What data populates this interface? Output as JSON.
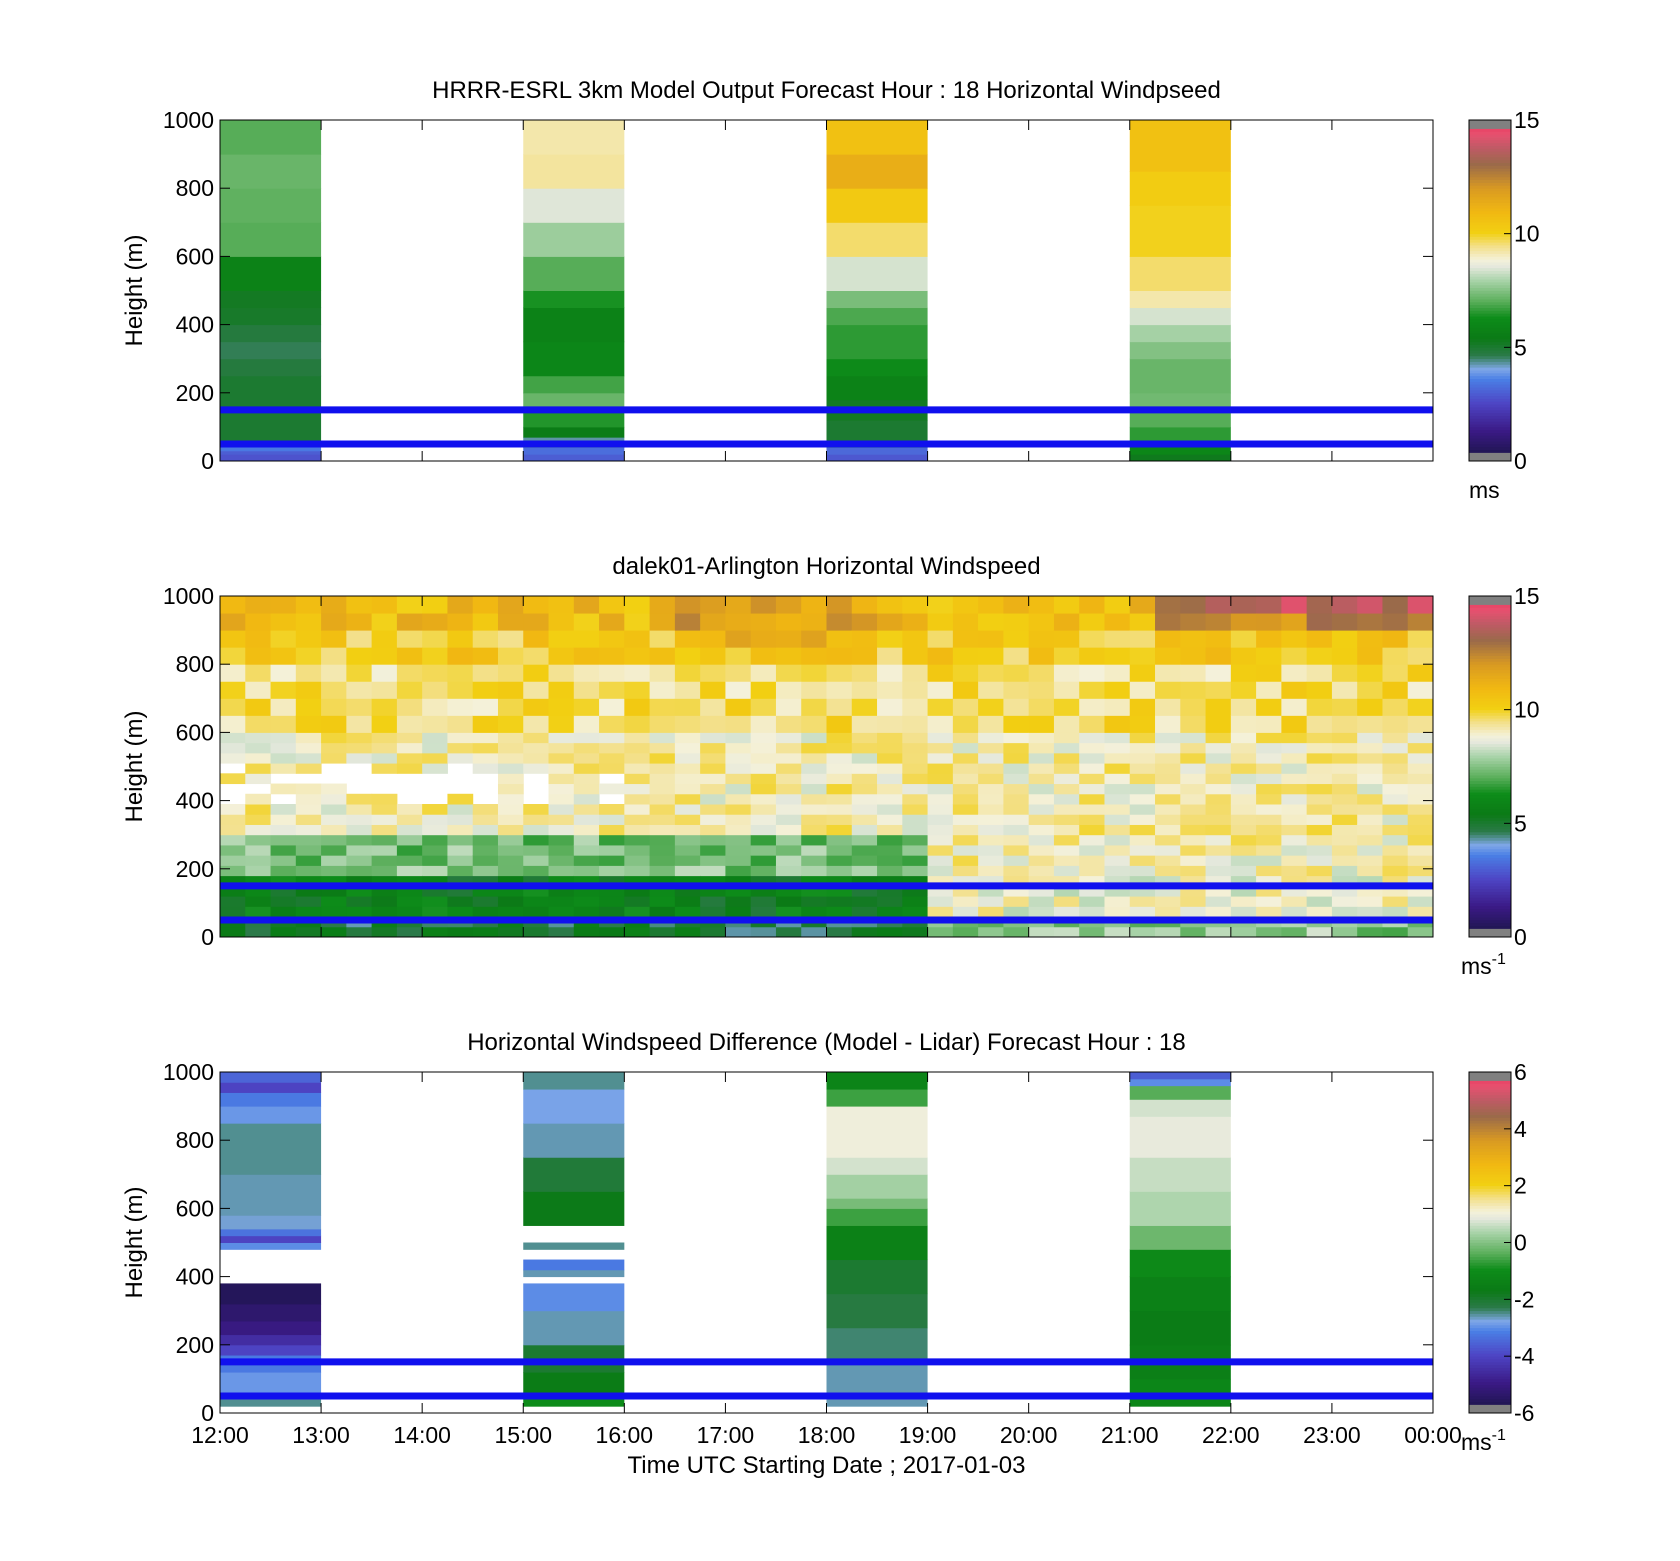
{
  "chart_data": {
    "type": "heatmap",
    "colormap": [
      [
        0.0,
        "#171440"
      ],
      [
        0.09,
        "#3b1a86"
      ],
      [
        0.17,
        "#4e45c5"
      ],
      [
        0.24,
        "#4a7fe5"
      ],
      [
        0.27,
        "#7fa7e8"
      ],
      [
        0.31,
        "#2b7a48"
      ],
      [
        0.36,
        "#0b7a16"
      ],
      [
        0.42,
        "#0d8c19"
      ],
      [
        0.47,
        "#5caf5c"
      ],
      [
        0.53,
        "#a9d3a9"
      ],
      [
        0.57,
        "#e4e8dc"
      ],
      [
        0.59,
        "#f4f1da"
      ],
      [
        0.63,
        "#f3e08a"
      ],
      [
        0.67,
        "#f2d012"
      ],
      [
        0.73,
        "#f1b812"
      ],
      [
        0.8,
        "#d99a22"
      ],
      [
        0.87,
        "#9a6a4a"
      ],
      [
        0.92,
        "#c05a66"
      ],
      [
        0.96,
        "#e8506f"
      ],
      [
        1.0,
        "#e83055"
      ]
    ],
    "panels": [
      {
        "title": "HRRR-ESRL 3km Model Output   Forecast Hour : 18 Horizontal Windpseed",
        "ylabel": "Height (m)",
        "ylim": [
          0,
          1000
        ],
        "yticks": [
          "0",
          "200",
          "400",
          "600",
          "800",
          "1000"
        ],
        "colorbar": {
          "ticks": [
            "0",
            "5",
            "10",
            "15"
          ],
          "min": 0,
          "max": 15,
          "unit": "ms",
          "unit_sup": ""
        },
        "reference_lines": [
          150,
          50
        ],
        "columns": [
          {
            "x_start": 0,
            "x_end": 1,
            "levels": [
              [
                0,
                20,
                2.8
              ],
              [
                20,
                30,
                3.0
              ],
              [
                30,
                50,
                3.5
              ],
              [
                50,
                150,
                5.0
              ],
              [
                150,
                250,
                5.0
              ],
              [
                250,
                300,
                4.8
              ],
              [
                300,
                350,
                4.6
              ],
              [
                350,
                400,
                4.8
              ],
              [
                400,
                450,
                5.1
              ],
              [
                450,
                500,
                5.2
              ],
              [
                500,
                600,
                5.8
              ],
              [
                600,
                700,
                7.0
              ],
              [
                700,
                800,
                7.1
              ],
              [
                800,
                900,
                7.2
              ],
              [
                900,
                1000,
                7.0
              ]
            ]
          },
          {
            "x_start": 3,
            "x_end": 4,
            "levels": [
              [
                0,
                20,
                3.0
              ],
              [
                20,
                40,
                3.3
              ],
              [
                40,
                70,
                4.3
              ],
              [
                70,
                100,
                5.5
              ],
              [
                100,
                150,
                6.5
              ],
              [
                150,
                200,
                7.2
              ],
              [
                200,
                250,
                6.8
              ],
              [
                250,
                350,
                6.0
              ],
              [
                350,
                450,
                5.8
              ],
              [
                450,
                500,
                6.4
              ],
              [
                500,
                600,
                7.0
              ],
              [
                600,
                700,
                7.8
              ],
              [
                700,
                800,
                8.5
              ],
              [
                800,
                900,
                9.3
              ],
              [
                900,
                1000,
                9.2
              ]
            ]
          },
          {
            "x_start": 6,
            "x_end": 7,
            "levels": [
              [
                0,
                20,
                2.9
              ],
              [
                20,
                40,
                3.2
              ],
              [
                40,
                60,
                4.4
              ],
              [
                60,
                120,
                5.0
              ],
              [
                120,
                180,
                5.2
              ],
              [
                180,
                250,
                5.8
              ],
              [
                250,
                300,
                6.2
              ],
              [
                300,
                400,
                6.6
              ],
              [
                400,
                450,
                6.9
              ],
              [
                450,
                500,
                7.4
              ],
              [
                500,
                600,
                8.4
              ],
              [
                600,
                700,
                9.6
              ],
              [
                700,
                800,
                10.3
              ],
              [
                800,
                900,
                11.3
              ],
              [
                900,
                1000,
                10.6
              ]
            ]
          },
          {
            "x_start": 9,
            "x_end": 10,
            "levels": [
              [
                0,
                20,
                5.3
              ],
              [
                20,
                50,
                6.0
              ],
              [
                50,
                100,
                6.6
              ],
              [
                100,
                150,
                7.0
              ],
              [
                150,
                200,
                7.3
              ],
              [
                200,
                300,
                7.2
              ],
              [
                300,
                350,
                7.5
              ],
              [
                350,
                400,
                7.9
              ],
              [
                400,
                450,
                8.4
              ],
              [
                450,
                500,
                9.2
              ],
              [
                500,
                600,
                9.6
              ],
              [
                600,
                750,
                10.0
              ],
              [
                750,
                850,
                10.2
              ],
              [
                850,
                1000,
                10.6
              ]
            ]
          }
        ]
      },
      {
        "title": "dalek01-Arlington  Horizontal Windspeed",
        "ylabel": "Height (m)",
        "ylim": [
          0,
          1000
        ],
        "yticks": [
          "0",
          "200",
          "400",
          "600",
          "800",
          "1000"
        ],
        "colorbar": {
          "ticks": [
            "0",
            "5",
            "10",
            "15"
          ],
          "min": 0,
          "max": 15,
          "unit": "ms",
          "unit_sup": "-1"
        },
        "reference_lines": [
          150,
          50
        ],
        "profile_times": [
          0.0,
          0.25,
          0.5,
          0.75,
          1.0,
          1.25,
          1.5,
          1.75,
          2.0,
          2.25,
          2.5,
          2.75,
          3.0,
          3.25,
          3.5,
          3.75,
          4.0,
          4.25,
          4.5,
          4.75,
          5.0,
          5.25,
          5.5,
          5.75,
          6.0,
          6.25,
          6.5,
          6.75,
          7.0,
          7.25,
          7.5,
          7.75,
          8.0,
          8.25,
          8.5,
          8.75,
          9.0,
          9.25,
          9.5,
          9.75,
          10.0,
          10.25,
          10.5,
          10.75,
          11.0,
          11.25,
          11.5,
          11.75
        ],
        "profile_levels": [
          [
            0,
            30
          ],
          [
            30,
            60
          ],
          [
            60,
            90
          ],
          [
            90,
            120
          ],
          [
            120,
            150
          ],
          [
            150,
            180
          ],
          [
            180,
            210
          ],
          [
            210,
            240
          ],
          [
            240,
            270
          ],
          [
            270,
            300
          ],
          [
            300,
            330
          ],
          [
            330,
            360
          ],
          [
            360,
            390
          ],
          [
            390,
            420
          ],
          [
            420,
            450
          ],
          [
            450,
            480
          ],
          [
            480,
            510
          ],
          [
            510,
            540
          ],
          [
            540,
            570
          ],
          [
            570,
            600
          ],
          [
            600,
            650
          ],
          [
            650,
            700
          ],
          [
            700,
            750
          ],
          [
            750,
            800
          ],
          [
            800,
            850
          ],
          [
            850,
            900
          ],
          [
            900,
            950
          ],
          [
            950,
            1000
          ]
        ],
        "speed_profile": {
          "model": "speed(t,z) ≈ near-surface ~5–6 ms-1 before 19:00 and ~8–9 ms-1 after, rising to ~8–9 ms-1 mid-levels and ~10–13 ms-1 near 1000 m (late-day maxima ~14 ms-1); missing patches near 400–520 m before 16:00"
        }
      },
      {
        "title": "Horizontal Windspeed Difference (Model - Lidar) Forecast Hour : 18",
        "ylabel": "Height (m)",
        "ylim": [
          0,
          1000
        ],
        "yticks": [
          "0",
          "200",
          "400",
          "600",
          "800",
          "1000"
        ],
        "colorbar": {
          "ticks": [
            "-6",
            "-4",
            "-2",
            "0",
            "2",
            "4",
            "6"
          ],
          "min": -6,
          "max": 6,
          "unit": "ms",
          "unit_sup": "-1"
        },
        "reference_lines": [
          150,
          50
        ],
        "columns": [
          {
            "x_start": 0,
            "x_end": 1,
            "levels": [
              [
                20,
                60,
                -2.5
              ],
              [
                60,
                120,
                -2.9
              ],
              [
                120,
                170,
                -3.2
              ],
              [
                170,
                200,
                -4.0
              ],
              [
                200,
                230,
                -4.5
              ],
              [
                230,
                270,
                -5.0
              ],
              [
                270,
                320,
                -5.3
              ],
              [
                320,
                380,
                -5.6
              ],
              [
                480,
                500,
                -3.0
              ],
              [
                500,
                520,
                -4.0
              ],
              [
                520,
                540,
                -3.3
              ],
              [
                540,
                580,
                -2.7
              ],
              [
                580,
                700,
                -2.6
              ],
              [
                700,
                850,
                -2.5
              ],
              [
                850,
                900,
                -2.9
              ],
              [
                900,
                940,
                -3.2
              ],
              [
                940,
                970,
                -4.0
              ],
              [
                970,
                1000,
                -3.5
              ]
            ]
          },
          {
            "x_start": 3,
            "x_end": 4,
            "levels": [
              [
                20,
                60,
                -1.0
              ],
              [
                60,
                120,
                -1.6
              ],
              [
                120,
                200,
                -2.0
              ],
              [
                200,
                300,
                -2.6
              ],
              [
                300,
                380,
                -3.0
              ],
              [
                400,
                420,
                -2.6
              ],
              [
                420,
                450,
                -3.2
              ],
              [
                480,
                500,
                -2.5
              ],
              [
                550,
                650,
                -1.7
              ],
              [
                650,
                750,
                -2.1
              ],
              [
                750,
                850,
                -2.6
              ],
              [
                850,
                950,
                -2.8
              ],
              [
                950,
                1000,
                -2.5
              ]
            ]
          },
          {
            "x_start": 6,
            "x_end": 7,
            "levels": [
              [
                20,
                150,
                -2.6
              ],
              [
                150,
                250,
                -2.4
              ],
              [
                250,
                350,
                -2.2
              ],
              [
                350,
                450,
                -2.0
              ],
              [
                450,
                550,
                -1.4
              ],
              [
                550,
                600,
                -0.6
              ],
              [
                600,
                630,
                -0.1
              ],
              [
                630,
                700,
                0.3
              ],
              [
                700,
                750,
                0.7
              ],
              [
                750,
                900,
                1.0
              ],
              [
                900,
                950,
                -0.6
              ],
              [
                950,
                1000,
                -1.3
              ]
            ]
          },
          {
            "x_start": 9,
            "x_end": 10,
            "levels": [
              [
                20,
                100,
                -1.2
              ],
              [
                100,
                200,
                -1.5
              ],
              [
                200,
                300,
                -1.6
              ],
              [
                300,
                400,
                -1.4
              ],
              [
                400,
                480,
                -1.1
              ],
              [
                480,
                550,
                -0.2
              ],
              [
                550,
                650,
                0.4
              ],
              [
                650,
                750,
                0.6
              ],
              [
                750,
                870,
                0.9
              ],
              [
                870,
                920,
                0.7
              ],
              [
                920,
                960,
                -0.4
              ],
              [
                960,
                980,
                -3.0
              ],
              [
                980,
                1000,
                -3.6
              ]
            ]
          }
        ]
      }
    ],
    "x_axis": {
      "range": [
        0,
        12
      ],
      "tick_labels": [
        "12:00",
        "13:00",
        "14:00",
        "15:00",
        "16:00",
        "17:00",
        "18:00",
        "19:00",
        "20:00",
        "21:00",
        "22:00",
        "23:00",
        "00:00"
      ],
      "label": "Time UTC  Starting Date ; 2017-01-03"
    },
    "reference_line_color": "#1010ee"
  }
}
